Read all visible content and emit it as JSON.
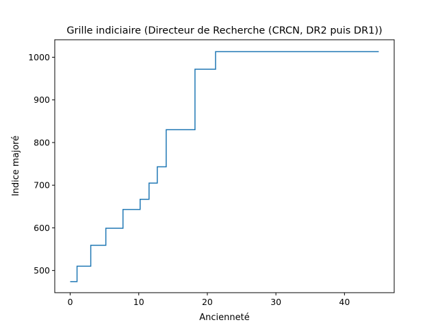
{
  "chart_data": {
    "type": "line",
    "step": "post",
    "title": "Grille indiciaire (Directeur de Recherche (CRCN, DR2 puis DR1))",
    "xlabel": "Ancienneté",
    "ylabel": "Indice majoré",
    "xlim": [
      -2.25,
      47.25
    ],
    "ylim": [
      448,
      1041
    ],
    "xticks": [
      0,
      10,
      20,
      30,
      40
    ],
    "yticks": [
      500,
      600,
      700,
      800,
      900,
      1000
    ],
    "grid": false,
    "color": "#1f77b4",
    "series": [
      {
        "x": [
          0,
          1,
          3,
          5.2,
          7.7,
          10.2,
          11.5,
          12.7,
          14,
          18.2,
          21.2,
          45
        ],
        "y": [
          474,
          510,
          559,
          599,
          643,
          667,
          705,
          743,
          830,
          972,
          1013,
          1013
        ]
      }
    ]
  }
}
